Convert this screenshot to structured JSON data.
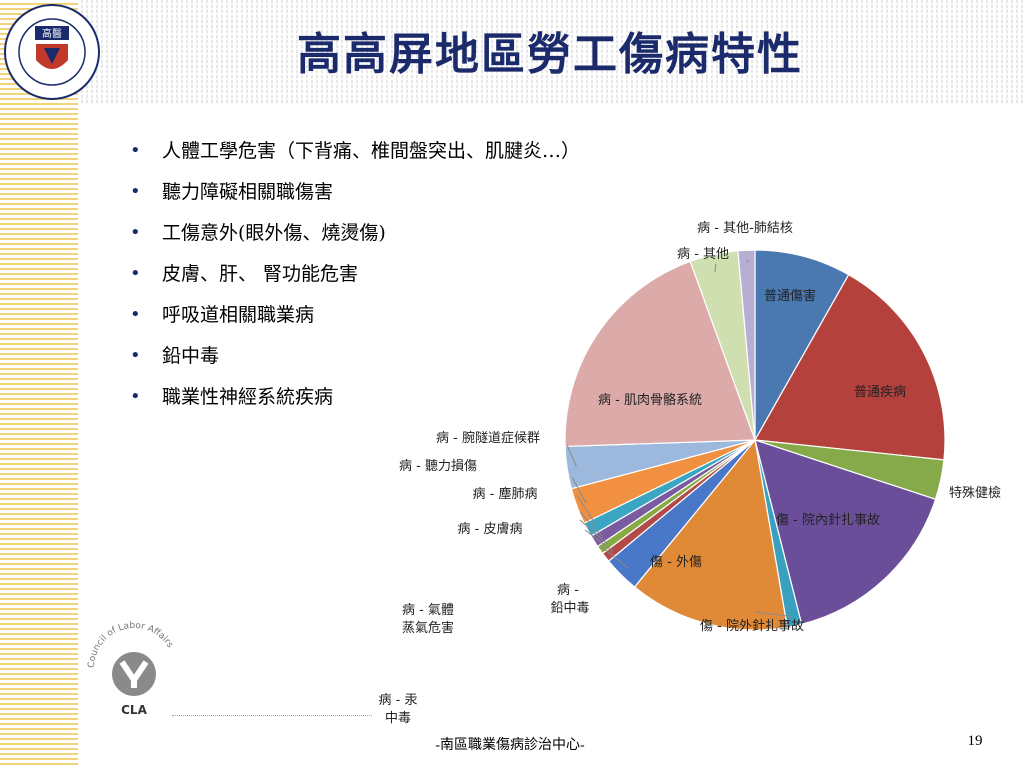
{
  "slide": {
    "title": "高高屏地區勞工傷病特性",
    "bullets": [
      "人體工學危害（下背痛、椎間盤突出、肌腱炎…）",
      "聽力障礙相關職傷害",
      "工傷意外(眼外傷、燒燙傷)",
      "皮膚、肝、 腎功能危害",
      "呼吸道相關職業病",
      "鉛中毒",
      "職業性神經系統疾病"
    ],
    "bullet_symbol": "•",
    "footer": "-南區職業傷病診治中心-",
    "page_number": "19",
    "logos": {
      "university_logo_text": "高醫",
      "cla_text": "CLA",
      "cla_arc_text": "Council of Labor Affairs"
    }
  },
  "chart_data": {
    "type": "pie",
    "start": "12 o'clock, clockwise",
    "slices": [
      {
        "label": "普通傷害",
        "value": 8.0,
        "color": "#4a78b0"
      },
      {
        "label": "普通疾病",
        "value": 18.0,
        "color": "#b5413d"
      },
      {
        "label": "特殊健檢",
        "value": 3.3,
        "color": "#86a94a"
      },
      {
        "label": "傷 - 院內針扎事故",
        "value": 15.6,
        "color": "#6a4e9a"
      },
      {
        "label": "傷 - 院外針扎事故",
        "value": 1.2,
        "color": "#3aa0c0"
      },
      {
        "label": "傷 - 外傷",
        "value": 13.3,
        "color": "#e08a38"
      },
      {
        "label": "病 - 鉛中毒",
        "value": 3.0,
        "color": "#4a78c8"
      },
      {
        "label": "病 - 氣體蒸氣危害",
        "value": 0.8,
        "color": "#b34a4a"
      },
      {
        "label": "病 - 汞中毒",
        "value": 0.7,
        "color": "#88aa44"
      },
      {
        "label": "病 - 皮膚病",
        "value": 1.0,
        "color": "#7a5aa0"
      },
      {
        "label": "病 - 塵肺病",
        "value": 1.2,
        "color": "#3aa6c4"
      },
      {
        "label": "病 - 聽力損傷",
        "value": 3.0,
        "color": "#f09040"
      },
      {
        "label": "病 - 腕隧道症候群",
        "value": 3.5,
        "color": "#9cb8dc"
      },
      {
        "label": "病 - 肌肉骨骼系統",
        "value": 19.5,
        "color": "#dcaaa8"
      },
      {
        "label": "病 - 其他",
        "value": 4.0,
        "color": "#cfdfb0"
      },
      {
        "label": "病 - 其他-肺結核",
        "value": 1.4,
        "color": "#b8aed4"
      }
    ]
  }
}
